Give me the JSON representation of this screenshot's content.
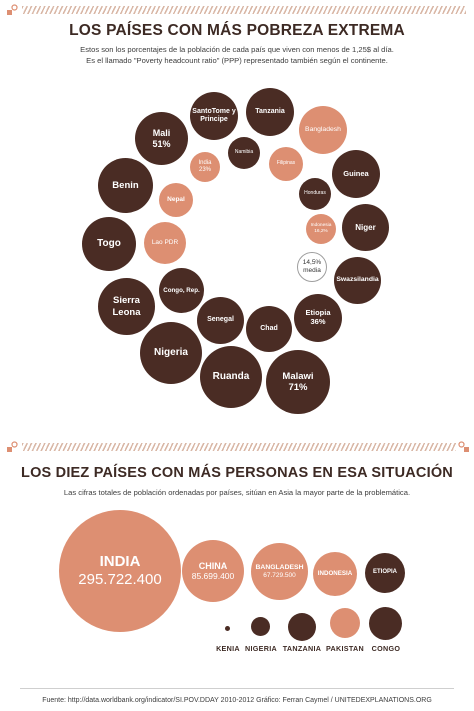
{
  "section1": {
    "title": "LOS PAÍSES CON MÁS POBREZA EXTREMA",
    "subtitle_line1": "Estos son los porcentajes de la población de cada país que viven con menos de 1,25$ al día.",
    "subtitle_line2": "Es el llamado \"Poverty headcount ratio\" (PPP) representado también según el continente."
  },
  "section2": {
    "title": "LOS DIEZ PAÍSES CON MÁS PERSONAS EN ESA SITUACIÓN",
    "subtitle": "Las cifras totales de población ordenadas por países, sitúan en Asia la mayor parte de la problemática."
  },
  "footer": {
    "source": "Fuente: http://data.worldbank.org/indicator/SI.POV.DDAY 2010-2012   Gráfico: Ferran Caymel / UNITEDEXPLANATIONS.ORG"
  },
  "colors": {
    "africa": "#4a2c24",
    "asia": "#dd8f72",
    "text_dark": "#3d2a24"
  },
  "icons": {
    "header1": "hand-coin-icon",
    "header2": "hand-coin-icon"
  },
  "chart_data": [
    {
      "type": "bubble",
      "title": "LOS PAÍSES CON MÁS POBREZA EXTREMA",
      "value_labels_shown": [
        "Mali 51%",
        "India 23%",
        "Etiopia 36%",
        "Malawi 71%",
        "Indonesia 16,2%",
        "14,5% media"
      ],
      "average": {
        "line1": "14,5%",
        "line2": "media"
      },
      "series": [
        {
          "name": "",
          "color": "#4a2c24",
          "points": [
            {
              "name": "SantoTome y Principe"
            },
            {
              "name": "Tanzania"
            },
            {
              "name": "Mali",
              "label": "51%"
            },
            {
              "name": "Namibia"
            },
            {
              "name": "Benin"
            },
            {
              "name": "Guinea"
            },
            {
              "name": "Honduras"
            },
            {
              "name": "Niger"
            },
            {
              "name": "Togo"
            },
            {
              "name": "Congo, Rep."
            },
            {
              "name": "Swazsilandia"
            },
            {
              "name": "Sierra Leona"
            },
            {
              "name": "Senegal"
            },
            {
              "name": "Etiopia",
              "label": "36%"
            },
            {
              "name": "Chad"
            },
            {
              "name": "Nigeria"
            },
            {
              "name": "Ruanda"
            },
            {
              "name": "Malawi",
              "label": "71%"
            }
          ]
        },
        {
          "name": "",
          "color": "#dd8f72",
          "points": [
            {
              "name": "Bangladesh"
            },
            {
              "name": "India",
              "label": "23%"
            },
            {
              "name": "Filipinas"
            },
            {
              "name": "Nepal"
            },
            {
              "name": "Indonesia",
              "label": "16,2%"
            },
            {
              "name": "Lao PDR"
            }
          ]
        }
      ]
    },
    {
      "type": "bubble",
      "title": "LOS DIEZ PAÍSES CON MÁS PERSONAS EN ESA SITUACIÓN",
      "points": [
        {
          "name": "INDIA",
          "value": 295722400,
          "value_label": "295.722.400",
          "color": "#dd8f72"
        },
        {
          "name": "CHINA",
          "value": 85699400,
          "value_label": "85.699.400",
          "color": "#dd8f72"
        },
        {
          "name": "BANGLADESH",
          "value": 67729500,
          "value_label": "67.729.500",
          "color": "#dd8f72"
        },
        {
          "name": "INDONESIA",
          "color": "#dd8f72"
        },
        {
          "name": "ETIOPIA",
          "color": "#4a2c24"
        },
        {
          "name": "KENIA",
          "color": "#4a2c24"
        },
        {
          "name": "NIGERIA",
          "color": "#4a2c24"
        },
        {
          "name": "TANZANIA",
          "color": "#4a2c24"
        },
        {
          "name": "PAKISTAN",
          "color": "#dd8f72"
        },
        {
          "name": "CONGO",
          "color": "#4a2c24"
        }
      ]
    }
  ]
}
